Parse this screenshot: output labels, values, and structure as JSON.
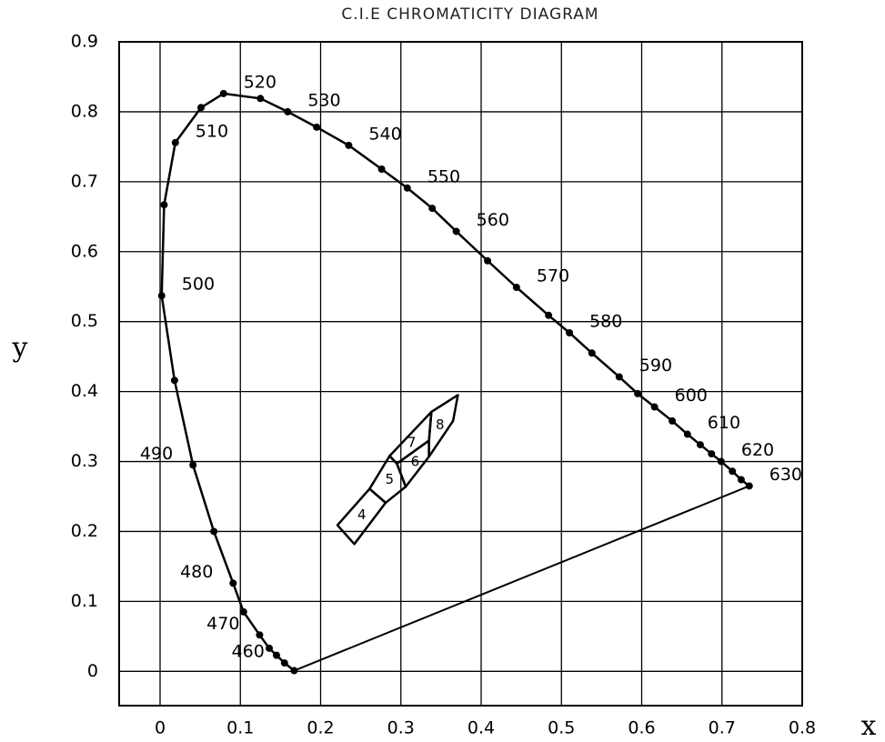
{
  "chart_data": {
    "type": "line",
    "title": "C.I.E  CHROMATICITY  DIAGRAM",
    "x_label": "x",
    "y_label": "y",
    "xlim": [
      -0.051,
      0.8
    ],
    "ylim": [
      -0.049,
      0.9
    ],
    "xticks": [
      0,
      0.1,
      0.2,
      0.3,
      0.4,
      0.5,
      0.6,
      0.7,
      0.8
    ],
    "yticks": [
      0,
      0.1,
      0.2,
      0.3,
      0.4,
      0.5,
      0.6,
      0.7,
      0.8,
      0.9
    ],
    "grid": true,
    "color": "#000000",
    "locus": {
      "x": [
        0.167,
        0.155,
        0.145,
        0.136,
        0.124,
        0.104,
        0.091,
        0.067,
        0.041,
        0.018,
        0.002,
        0.005,
        0.019,
        0.051,
        0.079,
        0.125,
        0.159,
        0.195,
        0.235,
        0.276,
        0.308,
        0.339,
        0.369,
        0.408,
        0.444,
        0.484,
        0.51,
        0.538,
        0.572,
        0.595,
        0.616,
        0.638,
        0.657,
        0.673,
        0.687,
        0.699,
        0.713,
        0.724,
        0.734
      ],
      "y": [
        0.001,
        0.012,
        0.023,
        0.033,
        0.052,
        0.085,
        0.126,
        0.2,
        0.295,
        0.416,
        0.537,
        0.667,
        0.756,
        0.806,
        0.826,
        0.819,
        0.8,
        0.778,
        0.752,
        0.718,
        0.691,
        0.662,
        0.629,
        0.587,
        0.549,
        0.509,
        0.484,
        0.455,
        0.421,
        0.397,
        0.378,
        0.358,
        0.339,
        0.324,
        0.311,
        0.3,
        0.286,
        0.274,
        0.265
      ],
      "wavelengths": [
        null,
        460,
        null,
        null,
        470,
        null,
        480,
        null,
        490,
        null,
        500,
        null,
        510,
        null,
        520,
        null,
        530,
        null,
        540,
        null,
        550,
        null,
        560,
        null,
        570,
        null,
        580,
        null,
        590,
        null,
        600,
        null,
        610,
        null,
        null,
        620,
        null,
        null,
        630
      ]
    },
    "regions": [
      {
        "label": "4",
        "x": [
          0.221,
          0.261,
          0.281,
          0.242
        ],
        "y": [
          0.209,
          0.261,
          0.241,
          0.182
        ]
      },
      {
        "label": "5",
        "x": [
          0.261,
          0.286,
          0.295,
          0.306,
          0.281
        ],
        "y": [
          0.261,
          0.308,
          0.297,
          0.264,
          0.241
        ]
      },
      {
        "label": "6",
        "x": [
          0.295,
          0.335,
          0.335,
          0.306
        ],
        "y": [
          0.297,
          0.33,
          0.307,
          0.264
        ]
      },
      {
        "label": "7",
        "x": [
          0.286,
          0.338,
          0.335,
          0.295
        ],
        "y": [
          0.308,
          0.371,
          0.33,
          0.297
        ]
      },
      {
        "label": "8",
        "x": [
          0.338,
          0.371,
          0.365,
          0.335,
          0.335
        ],
        "y": [
          0.371,
          0.395,
          0.358,
          0.307,
          0.33
        ]
      }
    ]
  }
}
